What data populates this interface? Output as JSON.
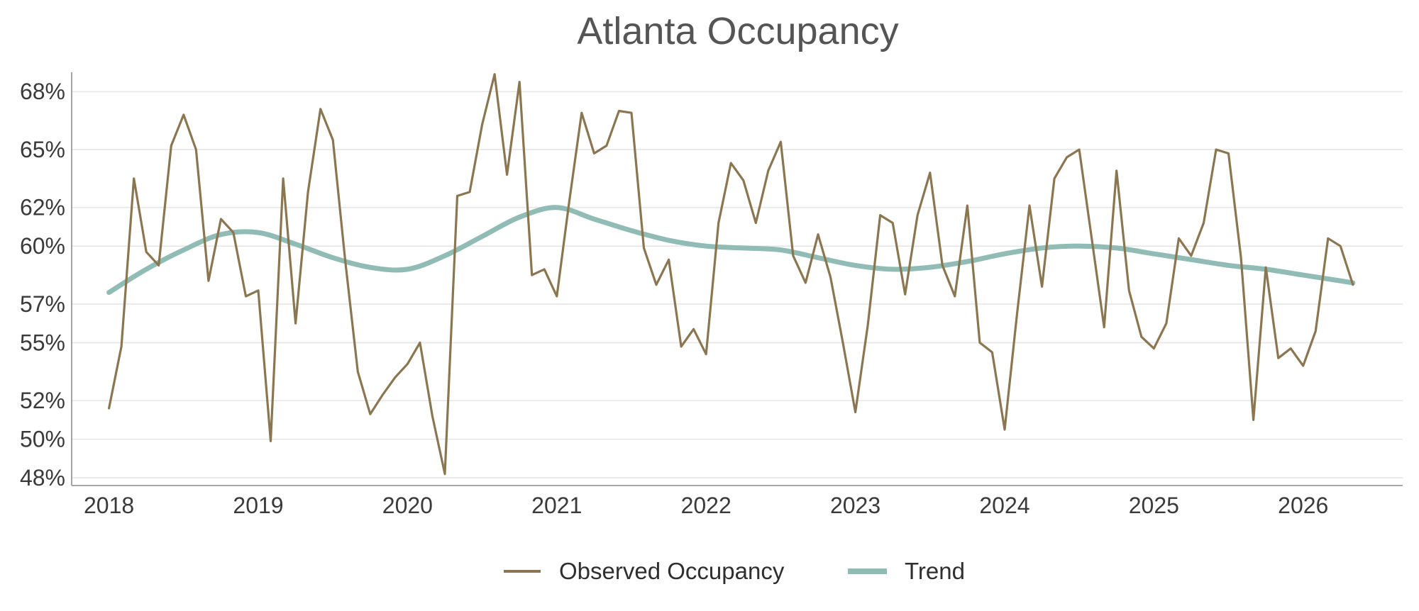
{
  "chart_data": {
    "type": "line",
    "title": "Atlanta Occupancy",
    "xlabel": "",
    "ylabel": "",
    "x_ticks": [
      "2018",
      "2019",
      "2020",
      "2021",
      "2022",
      "2023",
      "2024",
      "2025",
      "2026"
    ],
    "y_ticks": [
      "48%",
      "50%",
      "52%",
      "55%",
      "57%",
      "60%",
      "62%",
      "65%",
      "68%"
    ],
    "xlim": [
      "2017-10",
      "2026-09"
    ],
    "ylim": [
      47.6,
      69.0
    ],
    "grid": "horizontal",
    "legend_position": "bottom-center",
    "series": [
      {
        "name": "Observed Occupancy",
        "color": "#8a7650",
        "x": [
          "2018-01",
          "2018-02",
          "2018-03",
          "2018-04",
          "2018-05",
          "2018-06",
          "2018-07",
          "2018-08",
          "2018-09",
          "2018-10",
          "2018-11",
          "2018-12",
          "2019-01",
          "2019-02",
          "2019-03",
          "2019-04",
          "2019-05",
          "2019-06",
          "2019-07",
          "2019-08",
          "2019-09",
          "2019-10",
          "2019-11",
          "2019-12",
          "2020-01",
          "2020-02",
          "2020-03",
          "2020-04",
          "2020-05",
          "2020-06",
          "2020-07",
          "2020-08",
          "2020-09",
          "2020-10",
          "2020-11",
          "2020-12",
          "2021-01",
          "2021-02",
          "2021-03",
          "2021-04",
          "2021-05",
          "2021-06",
          "2021-07",
          "2021-08",
          "2021-09",
          "2021-10",
          "2021-11",
          "2021-12",
          "2022-01",
          "2022-02",
          "2022-03",
          "2022-04",
          "2022-05",
          "2022-06",
          "2022-07",
          "2022-08",
          "2022-09",
          "2022-10",
          "2022-11",
          "2022-12",
          "2023-01",
          "2023-02",
          "2023-03",
          "2023-04",
          "2023-05",
          "2023-06",
          "2023-07",
          "2023-08",
          "2023-09",
          "2023-10",
          "2023-11",
          "2023-12",
          "2024-01",
          "2024-02",
          "2024-03",
          "2024-04",
          "2024-05",
          "2024-06",
          "2024-07",
          "2024-08",
          "2024-09",
          "2024-10",
          "2024-11",
          "2024-12",
          "2025-01",
          "2025-02",
          "2025-03",
          "2025-04",
          "2025-05",
          "2025-06",
          "2025-07",
          "2025-08",
          "2025-09",
          "2025-10",
          "2025-11",
          "2025-12",
          "2026-01",
          "2026-02",
          "2026-03",
          "2026-04",
          "2026-05"
        ],
        "values": [
          51.6,
          54.8,
          63.5,
          59.7,
          59.0,
          65.2,
          66.8,
          65.0,
          58.2,
          61.4,
          60.7,
          57.4,
          57.7,
          49.9,
          63.5,
          56.0,
          62.8,
          67.1,
          65.5,
          59.2,
          53.5,
          51.3,
          52.3,
          53.2,
          53.9,
          55.0,
          51.2,
          48.2,
          62.6,
          62.8,
          66.3,
          68.9,
          63.7,
          68.5,
          58.5,
          58.8,
          57.4,
          62.3,
          66.9,
          64.8,
          65.2,
          67.0,
          66.9,
          59.9,
          58.0,
          59.3,
          54.8,
          55.7,
          54.4,
          61.2,
          64.3,
          63.4,
          61.2,
          63.9,
          65.4,
          59.5,
          58.1,
          60.6,
          58.4,
          55.0,
          51.4,
          55.9,
          61.6,
          61.2,
          57.5,
          61.6,
          63.8,
          59.0,
          57.4,
          62.1,
          55.0,
          54.5,
          50.5,
          56.5,
          62.1,
          57.9,
          63.5,
          64.6,
          65.0,
          60.4,
          55.8,
          63.9,
          57.7,
          55.3,
          54.7,
          56.0,
          60.4,
          59.5,
          61.2,
          65.0,
          64.8,
          59.4,
          51.0,
          58.9,
          54.2,
          54.7,
          53.8,
          55.6,
          60.4,
          60.0,
          58.0
        ]
      },
      {
        "name": "Trend",
        "color": "#91bcb5",
        "x": [
          "2018-01",
          "2018-04",
          "2018-07",
          "2018-10",
          "2019-01",
          "2019-04",
          "2019-07",
          "2019-10",
          "2020-01",
          "2020-04",
          "2020-07",
          "2020-10",
          "2021-01",
          "2021-04",
          "2021-07",
          "2021-10",
          "2022-01",
          "2022-04",
          "2022-07",
          "2022-10",
          "2023-01",
          "2023-04",
          "2023-07",
          "2023-10",
          "2024-01",
          "2024-04",
          "2024-07",
          "2024-10",
          "2025-01",
          "2025-04",
          "2025-07",
          "2025-10",
          "2026-01",
          "2026-05"
        ],
        "values": [
          57.6,
          58.8,
          59.8,
          60.6,
          60.7,
          60.1,
          59.4,
          58.9,
          58.8,
          59.5,
          60.5,
          61.5,
          62.0,
          61.4,
          60.8,
          60.3,
          60.0,
          59.9,
          59.8,
          59.4,
          59.0,
          58.8,
          58.9,
          59.2,
          59.6,
          59.9,
          60.0,
          59.9,
          59.6,
          59.3,
          59.0,
          58.8,
          58.5,
          58.1
        ]
      }
    ]
  }
}
